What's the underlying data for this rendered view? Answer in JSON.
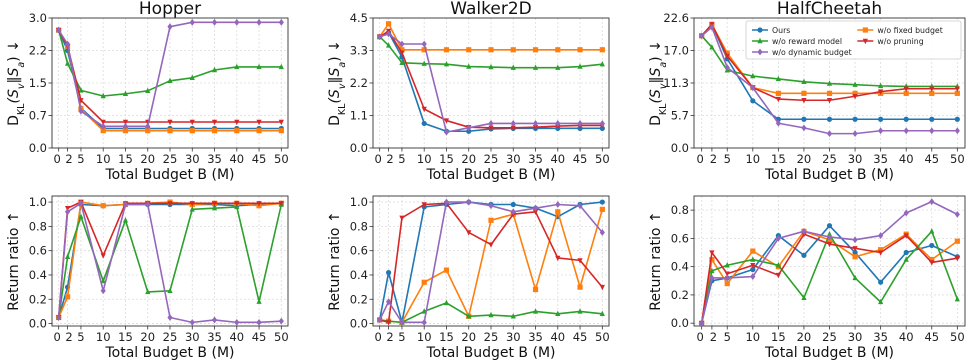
{
  "chart_data": [
    {
      "type": "line",
      "title": "Hopper",
      "xlabel": "Total Budget B (M)",
      "ylabel": "D_KL(S_v||S_a) ↓",
      "x": [
        0,
        2,
        5,
        10,
        15,
        20,
        25,
        30,
        35,
        40,
        45,
        50
      ],
      "xticks": [
        "0",
        "2",
        "5",
        "10",
        "15",
        "20",
        "25",
        "30",
        "35",
        "40",
        "45",
        "50"
      ],
      "ylim": [
        0,
        3.0
      ],
      "yticks": [
        "0.0",
        "0.7",
        "1.5",
        "2.2",
        "3.0"
      ],
      "ytick_values": [
        0,
        0.75,
        1.5,
        2.25,
        3.0
      ],
      "grid": true,
      "series": [
        {
          "name": "Ours",
          "values": [
            2.72,
            2.25,
            0.92,
            0.45,
            0.45,
            0.45,
            0.45,
            0.45,
            0.45,
            0.45,
            0.45,
            0.45
          ]
        },
        {
          "name": "w/o fixed budget",
          "values": [
            2.72,
            2.35,
            0.9,
            0.4,
            0.4,
            0.4,
            0.4,
            0.4,
            0.4,
            0.4,
            0.4,
            0.4
          ]
        },
        {
          "name": "w/o reward model",
          "values": [
            2.72,
            1.95,
            1.33,
            1.2,
            1.25,
            1.32,
            1.55,
            1.62,
            1.8,
            1.87,
            1.87,
            1.87
          ]
        },
        {
          "name": "w/o pruning",
          "values": [
            2.72,
            2.35,
            1.1,
            0.6,
            0.6,
            0.6,
            0.6,
            0.6,
            0.6,
            0.6,
            0.6,
            0.6
          ]
        },
        {
          "name": "w/o dynamic budget",
          "values": [
            2.72,
            2.4,
            0.85,
            0.5,
            0.5,
            0.5,
            2.8,
            2.9,
            2.9,
            2.9,
            2.9,
            2.9
          ]
        }
      ]
    },
    {
      "type": "line",
      "title": "Walker2D",
      "xlabel": "Total Budget B (M)",
      "ylabel": "D_KL(S_v||S_a) ↓",
      "x": [
        0,
        2,
        5,
        10,
        15,
        20,
        25,
        30,
        35,
        40,
        45,
        50
      ],
      "xticks": [
        "0",
        "2",
        "5",
        "10",
        "15",
        "20",
        "25",
        "30",
        "35",
        "40",
        "45",
        "50"
      ],
      "ylim": [
        0,
        4.5
      ],
      "yticks": [
        "0.0",
        "1.1",
        "2.2",
        "3.3",
        "4.5"
      ],
      "ytick_values": [
        0,
        1.125,
        2.25,
        3.375,
        4.5
      ],
      "grid": true,
      "series": [
        {
          "name": "Ours",
          "values": [
            3.85,
            4.0,
            3.15,
            0.85,
            0.58,
            0.58,
            0.66,
            0.68,
            0.68,
            0.68,
            0.68,
            0.68
          ]
        },
        {
          "name": "w/o fixed budget",
          "values": [
            3.85,
            4.3,
            3.4,
            3.4,
            3.4,
            3.4,
            3.4,
            3.4,
            3.4,
            3.4,
            3.4,
            3.4
          ]
        },
        {
          "name": "w/o reward model",
          "values": [
            3.85,
            3.55,
            2.95,
            2.92,
            2.9,
            2.82,
            2.8,
            2.78,
            2.78,
            2.78,
            2.82,
            2.9
          ]
        },
        {
          "name": "w/o pruning",
          "values": [
            3.85,
            4.05,
            3.3,
            1.35,
            0.95,
            0.72,
            0.7,
            0.7,
            0.72,
            0.76,
            0.78,
            0.78
          ]
        },
        {
          "name": "w/o dynamic budget",
          "values": [
            3.85,
            3.95,
            3.6,
            3.6,
            0.55,
            0.7,
            0.85,
            0.85,
            0.85,
            0.85,
            0.85,
            0.85
          ]
        }
      ]
    },
    {
      "type": "line",
      "title": "HalfCheetah",
      "xlabel": "Total Budget B (M)",
      "ylabel": "D_KL(S_v||S_a) ↓",
      "x": [
        0,
        2,
        5,
        10,
        15,
        20,
        25,
        30,
        35,
        40,
        45,
        50
      ],
      "xticks": [
        "0",
        "2",
        "5",
        "10",
        "15",
        "20",
        "25",
        "30",
        "35",
        "40",
        "45",
        "50"
      ],
      "ylim": [
        0,
        22.6
      ],
      "yticks": [
        "0.0",
        "5.7",
        "11.3",
        "17.0",
        "22.6"
      ],
      "ytick_values": [
        0,
        5.65,
        11.3,
        16.95,
        22.6
      ],
      "grid": true,
      "legend": "top-right",
      "series": [
        {
          "name": "Ours",
          "values": [
            19.5,
            21.5,
            15.5,
            8.2,
            5.0,
            5.0,
            5.0,
            5.0,
            5.0,
            5.0,
            5.0,
            5.0
          ]
        },
        {
          "name": "w/o fixed budget",
          "values": [
            19.5,
            21.5,
            16.5,
            10.5,
            9.5,
            9.5,
            9.5,
            9.5,
            9.5,
            9.5,
            9.5,
            9.5
          ]
        },
        {
          "name": "w/o reward model",
          "values": [
            19.5,
            17.5,
            13.5,
            12.5,
            12.0,
            11.5,
            11.2,
            11.0,
            10.8,
            10.7,
            10.7,
            10.7
          ]
        },
        {
          "name": "w/o pruning",
          "values": [
            19.5,
            21.5,
            16.0,
            10.5,
            8.5,
            8.3,
            8.3,
            9.0,
            9.8,
            10.3,
            10.3,
            10.3
          ]
        },
        {
          "name": "w/o dynamic budget",
          "values": [
            19.5,
            21.0,
            14.0,
            10.5,
            4.3,
            3.5,
            2.5,
            2.5,
            3.0,
            3.0,
            3.0,
            3.0
          ]
        }
      ]
    },
    {
      "type": "line",
      "title": "",
      "xlabel": "Total Budget B (M)",
      "ylabel": "Return ratio ↑",
      "x": [
        0,
        2,
        5,
        10,
        15,
        20,
        25,
        30,
        35,
        40,
        45,
        50
      ],
      "xticks": [
        "0",
        "2",
        "5",
        "10",
        "15",
        "20",
        "25",
        "30",
        "35",
        "40",
        "45",
        "50"
      ],
      "ylim": [
        -0.02,
        1.05
      ],
      "yticks": [
        "0.0",
        "0.2",
        "0.4",
        "0.6",
        "0.8",
        "1.0"
      ],
      "ytick_values": [
        0,
        0.2,
        0.4,
        0.6,
        0.8,
        1.0
      ],
      "grid": true,
      "series": [
        {
          "name": "Ours",
          "values": [
            0.05,
            0.3,
            0.98,
            0.97,
            0.98,
            0.98,
            0.98,
            0.98,
            0.98,
            0.97,
            0.98,
            0.99
          ]
        },
        {
          "name": "w/o fixed budget",
          "values": [
            0.05,
            0.22,
            1.0,
            0.97,
            0.98,
            0.99,
            1.0,
            0.98,
            0.99,
            0.99,
            0.97,
            0.99
          ]
        },
        {
          "name": "w/o reward model",
          "values": [
            0.05,
            0.55,
            0.88,
            0.35,
            0.85,
            0.26,
            0.27,
            0.94,
            0.95,
            0.96,
            0.18,
            0.98
          ]
        },
        {
          "name": "w/o pruning",
          "values": [
            0.05,
            0.95,
            1.0,
            0.56,
            0.99,
            0.99,
            0.99,
            0.99,
            0.99,
            0.99,
            0.99,
            0.99
          ]
        },
        {
          "name": "w/o dynamic budget",
          "values": [
            0.05,
            0.92,
            0.99,
            0.27,
            0.98,
            0.98,
            0.05,
            0.01,
            0.03,
            0.01,
            0.01,
            0.02
          ]
        }
      ]
    },
    {
      "type": "line",
      "title": "",
      "xlabel": "Total Budget B (M)",
      "ylabel": "Return ratio ↑",
      "x": [
        0,
        2,
        5,
        10,
        15,
        20,
        25,
        30,
        35,
        40,
        45,
        50
      ],
      "xticks": [
        "0",
        "2",
        "5",
        "10",
        "15",
        "20",
        "25",
        "30",
        "35",
        "40",
        "45",
        "50"
      ],
      "ylim": [
        -0.02,
        1.05
      ],
      "yticks": [
        "0.0",
        "0.2",
        "0.4",
        "0.6",
        "0.8",
        "1.0"
      ],
      "ytick_values": [
        0,
        0.2,
        0.4,
        0.6,
        0.8,
        1.0
      ],
      "grid": true,
      "series": [
        {
          "name": "Ours",
          "values": [
            0.03,
            0.42,
            0.01,
            0.96,
            0.98,
            1.0,
            0.98,
            0.98,
            0.95,
            0.88,
            0.98,
            1.0
          ]
        },
        {
          "name": "w/o fixed budget",
          "values": [
            0.03,
            0.02,
            0.01,
            0.34,
            0.44,
            0.06,
            0.85,
            0.9,
            0.28,
            0.92,
            0.3,
            0.94
          ]
        },
        {
          "name": "w/o reward model",
          "values": [
            0.03,
            0.02,
            0.01,
            0.1,
            0.17,
            0.06,
            0.07,
            0.06,
            0.1,
            0.08,
            0.1,
            0.08
          ]
        },
        {
          "name": "w/o pruning",
          "values": [
            0.03,
            0.01,
            0.87,
            0.98,
            0.99,
            0.75,
            0.65,
            0.9,
            0.92,
            0.54,
            0.52,
            0.3
          ]
        },
        {
          "name": "w/o dynamic budget",
          "values": [
            0.03,
            0.18,
            0.01,
            0.01,
            1.0,
            1.0,
            0.97,
            0.92,
            0.95,
            0.98,
            0.97,
            0.75
          ]
        }
      ]
    },
    {
      "type": "line",
      "title": "",
      "xlabel": "Total Budget B (M)",
      "ylabel": "Return ratio ↑",
      "x": [
        0,
        2,
        5,
        10,
        15,
        20,
        25,
        30,
        35,
        40,
        45,
        50
      ],
      "xticks": [
        "0",
        "2",
        "5",
        "10",
        "15",
        "20",
        "25",
        "30",
        "35",
        "40",
        "45",
        "50"
      ],
      "ylim": [
        -0.02,
        0.9
      ],
      "yticks": [
        "0.0",
        "0.2",
        "0.4",
        "0.6",
        "0.8"
      ],
      "ytick_values": [
        0,
        0.2,
        0.4,
        0.6,
        0.8
      ],
      "grid": true,
      "series": [
        {
          "name": "Ours",
          "values": [
            0.0,
            0.3,
            0.32,
            0.38,
            0.62,
            0.48,
            0.69,
            0.5,
            0.29,
            0.5,
            0.55,
            0.47
          ]
        },
        {
          "name": "w/o fixed budget",
          "values": [
            0.0,
            0.45,
            0.28,
            0.51,
            0.4,
            0.65,
            0.59,
            0.47,
            0.52,
            0.63,
            0.45,
            0.58
          ]
        },
        {
          "name": "w/o reward model",
          "values": [
            0.0,
            0.37,
            0.41,
            0.45,
            0.41,
            0.18,
            0.63,
            0.32,
            0.15,
            0.45,
            0.65,
            0.17
          ]
        },
        {
          "name": "w/o pruning",
          "values": [
            0.0,
            0.5,
            0.35,
            0.41,
            0.34,
            0.63,
            0.56,
            0.53,
            0.5,
            0.62,
            0.43,
            0.46
          ]
        },
        {
          "name": "w/o dynamic budget",
          "values": [
            0.0,
            0.32,
            0.32,
            0.33,
            0.6,
            0.65,
            0.61,
            0.59,
            0.62,
            0.78,
            0.86,
            0.77
          ]
        }
      ]
    }
  ],
  "series_colors": [
    "#1f77b4",
    "#ff7f0e",
    "#2ca02c",
    "#d62728",
    "#9467bd"
  ],
  "series_markers": [
    "circle",
    "square",
    "triangle-up",
    "triangle-down",
    "diamond"
  ]
}
